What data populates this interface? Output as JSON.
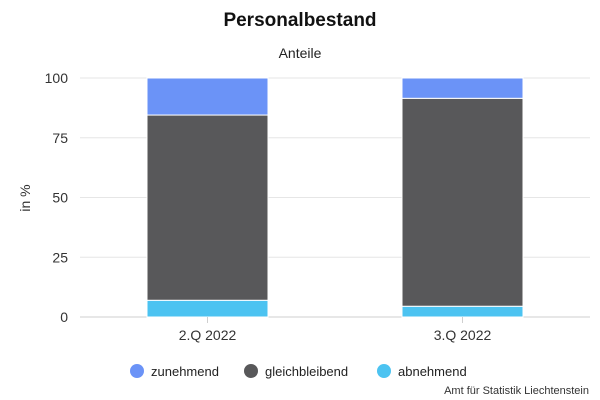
{
  "chart_data": {
    "type": "bar",
    "stacked": true,
    "title": "Personalbestand",
    "subtitle": "Anteile",
    "xlabel": "",
    "ylabel": "in %",
    "ylim": [
      0,
      100
    ],
    "yticks": [
      0,
      25,
      50,
      75,
      100
    ],
    "grid": true,
    "legend_position": "bottom",
    "categories": [
      "2.Q 2022",
      "3.Q 2022"
    ],
    "series": [
      {
        "name": "zunehmend",
        "color": "#6b93f7",
        "values": [
          15.5,
          8.5
        ]
      },
      {
        "name": "gleichbleibend",
        "color": "#58585a",
        "values": [
          77.5,
          87
        ]
      },
      {
        "name": "abnehmend",
        "color": "#4cc3f1",
        "values": [
          7,
          4.5
        ]
      }
    ],
    "stack_order_bottom_to_top": [
      "abnehmend",
      "gleichbleibend",
      "zunehmend"
    ],
    "credit": "Amt für Statistik Liechtenstein"
  }
}
